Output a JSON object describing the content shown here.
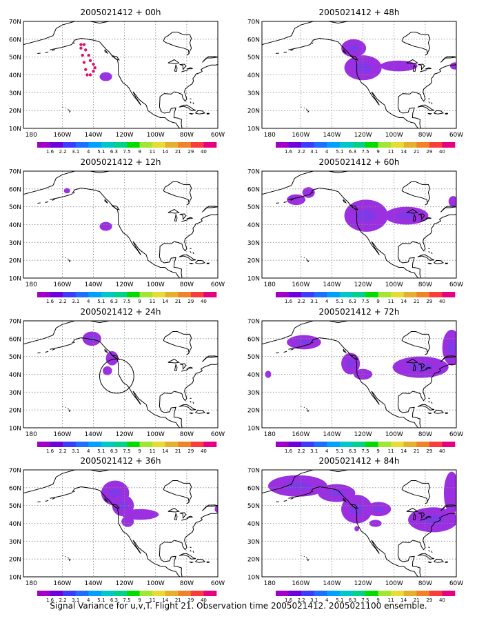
{
  "caption": "Signal Variance for u,v,T. Flight 21. Observation time 2005021412. 2005021100 ensemble.",
  "lat_ticks": [
    "70N",
    "60N",
    "50N",
    "40N",
    "30N",
    "20N",
    "10N"
  ],
  "lon_ticks": [
    "180",
    "160W",
    "140W",
    "120W",
    "100W",
    "80W",
    "60W"
  ],
  "colorbar": {
    "labels": [
      "1.6",
      "2.2",
      "3.1",
      "4",
      "5.1",
      "6.3",
      "7.5",
      "9",
      "11",
      "14",
      "21",
      "29",
      "40"
    ],
    "colors": [
      "#a000c8",
      "#6e00dc",
      "#3c3cff",
      "#1e6eff",
      "#00a0ff",
      "#00c8c8",
      "#00d28c",
      "#00dc00",
      "#a0e632",
      "#e6dc32",
      "#e6af2d",
      "#f08228",
      "#fa3c3c",
      "#e60082"
    ]
  },
  "map": {
    "lon_range": [
      -185,
      -60
    ],
    "lat_range": [
      10,
      70
    ],
    "grid": true,
    "shade_color": "#9b30e0",
    "shade_core_color": "#7a3ce8"
  },
  "panels": [
    {
      "title": "2005021412 + 00h",
      "flight_track": [
        [
          -148,
          57
        ],
        [
          -146,
          57
        ],
        [
          -145,
          54
        ],
        [
          -143,
          51
        ],
        [
          -142,
          48
        ],
        [
          -140,
          46
        ],
        [
          -139,
          44
        ],
        [
          -140,
          42
        ],
        [
          -142,
          40
        ],
        [
          -144,
          40
        ],
        [
          -145,
          43
        ],
        [
          -146,
          47
        ],
        [
          -147,
          51
        ],
        [
          -148,
          55
        ]
      ],
      "regions": [
        {
          "kind": "blob",
          "lon": -132,
          "lat": 39,
          "rx": 4,
          "ry": 2.5
        }
      ],
      "circle": null
    },
    {
      "title": "2005021412 + 12h",
      "regions": [
        {
          "kind": "blob",
          "lon": -157,
          "lat": 59,
          "rx": 2,
          "ry": 1.5
        },
        {
          "kind": "blob",
          "lon": -132,
          "lat": 39,
          "rx": 4,
          "ry": 2.5
        }
      ],
      "circle": null
    },
    {
      "title": "2005021412 + 24h",
      "regions": [
        {
          "kind": "blob",
          "lon": -141,
          "lat": 60,
          "rx": 6,
          "ry": 4
        },
        {
          "kind": "blob",
          "lon": -128,
          "lat": 49,
          "rx": 4,
          "ry": 4
        },
        {
          "kind": "blob",
          "lon": -131,
          "lat": 42,
          "rx": 3,
          "ry": 2.5
        }
      ],
      "circle": {
        "lon": -125,
        "lat": 39,
        "r": 11
      }
    },
    {
      "title": "2005021412 + 36h",
      "regions": [
        {
          "kind": "blob",
          "lon": -126,
          "lat": 57,
          "rx": 9,
          "ry": 7
        },
        {
          "kind": "blob",
          "lon": -121,
          "lat": 50,
          "rx": 7,
          "ry": 6
        },
        {
          "kind": "blob",
          "lon": -110,
          "lat": 45,
          "rx": 12,
          "ry": 3
        },
        {
          "kind": "blob",
          "lon": -118,
          "lat": 41,
          "rx": 4,
          "ry": 3
        },
        {
          "kind": "blob",
          "lon": -60,
          "lat": 48,
          "rx": 2,
          "ry": 2
        }
      ],
      "circle": null
    },
    {
      "title": "2005021412 + 48h",
      "regions": [
        {
          "kind": "blob",
          "lon": -126,
          "lat": 55,
          "rx": 8,
          "ry": 5
        },
        {
          "kind": "blob",
          "lon": -120,
          "lat": 44,
          "rx": 12,
          "ry": 7
        },
        {
          "kind": "blob",
          "lon": -97,
          "lat": 45,
          "rx": 12,
          "ry": 3
        },
        {
          "kind": "blob",
          "lon": -61,
          "lat": 45,
          "rx": 3,
          "ry": 2
        }
      ],
      "circle": null
    },
    {
      "title": "2005021412 + 60h",
      "regions": [
        {
          "kind": "blob",
          "lon": -163,
          "lat": 54,
          "rx": 6,
          "ry": 3
        },
        {
          "kind": "blob",
          "lon": -155,
          "lat": 58,
          "rx": 4,
          "ry": 3
        },
        {
          "kind": "blob",
          "lon": -118,
          "lat": 45,
          "rx": 14,
          "ry": 9
        },
        {
          "kind": "blob",
          "lon": -92,
          "lat": 45,
          "rx": 14,
          "ry": 5
        },
        {
          "kind": "blob",
          "lon": -62,
          "lat": 53,
          "rx": 3,
          "ry": 3
        }
      ],
      "circle": null
    },
    {
      "title": "2005021412 + 72h",
      "regions": [
        {
          "kind": "blob",
          "lon": -158,
          "lat": 58,
          "rx": 11,
          "ry": 4
        },
        {
          "kind": "blob",
          "lon": -128,
          "lat": 46,
          "rx": 6,
          "ry": 6
        },
        {
          "kind": "blob",
          "lon": -120,
          "lat": 40,
          "rx": 6,
          "ry": 3
        },
        {
          "kind": "blob",
          "lon": -83,
          "lat": 44,
          "rx": 18,
          "ry": 6
        },
        {
          "kind": "blob",
          "lon": -63,
          "lat": 55,
          "rx": 6,
          "ry": 10
        },
        {
          "kind": "blob",
          "lon": -181,
          "lat": 40,
          "rx": 2,
          "ry": 2
        }
      ],
      "circle": null
    },
    {
      "title": "2005021412 + 84h",
      "regions": [
        {
          "kind": "blob",
          "lon": -162,
          "lat": 61,
          "rx": 19,
          "ry": 6
        },
        {
          "kind": "blob",
          "lon": -137,
          "lat": 57,
          "rx": 12,
          "ry": 5
        },
        {
          "kind": "blob",
          "lon": -124,
          "lat": 48,
          "rx": 10,
          "ry": 8
        },
        {
          "kind": "blob",
          "lon": -110,
          "lat": 48,
          "rx": 8,
          "ry": 4
        },
        {
          "kind": "blob",
          "lon": -124,
          "lat": 37,
          "rx": 1.5,
          "ry": 1.5
        },
        {
          "kind": "blob",
          "lon": -112,
          "lat": 40,
          "rx": 4,
          "ry": 2
        },
        {
          "kind": "blob",
          "lon": -75,
          "lat": 42,
          "rx": 16,
          "ry": 7
        },
        {
          "kind": "blob",
          "lon": -63,
          "lat": 57,
          "rx": 5,
          "ry": 12
        }
      ],
      "circle": null
    }
  ]
}
